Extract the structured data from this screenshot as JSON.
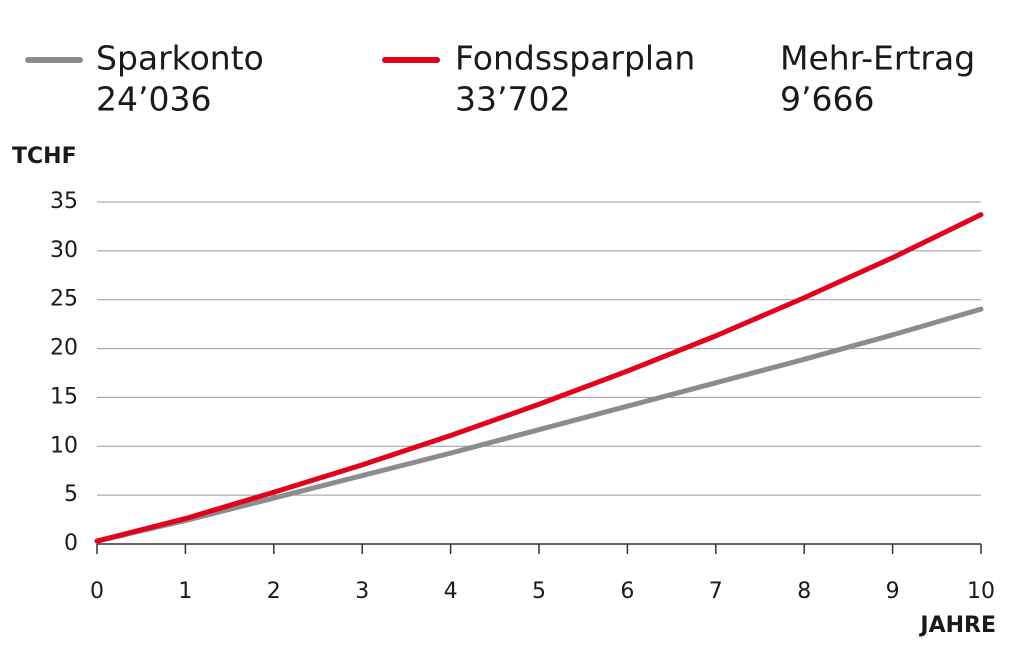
{
  "chart_data": {
    "type": "line",
    "y_label": "TCHF",
    "x_label": "JAHRE",
    "x": [
      0,
      1,
      2,
      3,
      4,
      5,
      6,
      7,
      8,
      9,
      10
    ],
    "series": [
      {
        "name": "Sparkonto",
        "color": "#8c8c8c",
        "total_label": "24’036",
        "values": [
          0.3,
          2.4,
          4.7,
          7.0,
          9.3,
          11.7,
          14.1,
          16.5,
          18.9,
          21.4,
          24.036
        ]
      },
      {
        "name": "Fondssparplan",
        "color": "#e2001a",
        "total_label": "33’702",
        "values": [
          0.3,
          2.6,
          5.3,
          8.1,
          11.1,
          14.3,
          17.7,
          21.3,
          25.2,
          29.3,
          33.702
        ]
      }
    ],
    "difference": {
      "name": "Mehr-Ertrag",
      "label": "9’666"
    },
    "xlim": [
      0,
      10
    ],
    "xticks": [
      0,
      1,
      2,
      3,
      4,
      5,
      6,
      7,
      8,
      9,
      10
    ],
    "ylim": [
      0,
      35
    ],
    "yticks": [
      0,
      5,
      10,
      15,
      20,
      25,
      30,
      35
    ],
    "grid": true
  }
}
